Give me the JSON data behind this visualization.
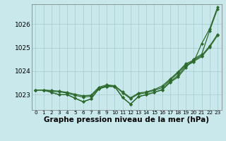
{
  "xlabel": "Graphe pression niveau de la mer (hPa)",
  "xlim": [
    -0.5,
    23.5
  ],
  "ylim": [
    1022.35,
    1026.85
  ],
  "yticks": [
    1023,
    1024,
    1025,
    1026
  ],
  "xticks": [
    0,
    1,
    2,
    3,
    4,
    5,
    6,
    7,
    8,
    9,
    10,
    11,
    12,
    13,
    14,
    15,
    16,
    17,
    18,
    19,
    20,
    21,
    22,
    23
  ],
  "background_color": "#c8e8ec",
  "grid_color": "#a8ccd2",
  "line_color": "#2d6a2d",
  "lines": [
    [
      1023.2,
      1023.2,
      1023.1,
      1023.0,
      1023.0,
      1022.85,
      1022.7,
      1022.82,
      1023.25,
      1023.35,
      1023.35,
      1022.88,
      1022.6,
      1022.92,
      1023.0,
      1023.1,
      1023.2,
      1023.52,
      1023.75,
      1024.15,
      1024.52,
      1024.72,
      1025.72,
      1026.65
    ],
    [
      1023.2,
      1023.2,
      1023.1,
      1023.0,
      1023.0,
      1022.85,
      1022.7,
      1022.82,
      1023.25,
      1023.35,
      1023.35,
      1022.88,
      1022.6,
      1022.92,
      1023.0,
      1023.1,
      1023.22,
      1023.55,
      1023.82,
      1024.22,
      1024.4,
      1025.18,
      1025.8,
      1026.72
    ],
    [
      1023.2,
      1023.2,
      1023.15,
      1023.12,
      1023.07,
      1022.97,
      1022.9,
      1022.93,
      1023.28,
      1023.38,
      1023.38,
      1023.08,
      1022.83,
      1023.03,
      1023.08,
      1023.18,
      1023.3,
      1023.62,
      1023.92,
      1024.27,
      1024.42,
      1024.62,
      1025.02,
      1025.52
    ],
    [
      1023.2,
      1023.2,
      1023.18,
      1023.15,
      1023.1,
      1023.02,
      1022.95,
      1022.98,
      1023.32,
      1023.42,
      1023.38,
      1023.12,
      1022.87,
      1023.07,
      1023.12,
      1023.22,
      1023.37,
      1023.67,
      1023.97,
      1024.32,
      1024.47,
      1024.67,
      1025.07,
      1025.57
    ]
  ],
  "linewidth": 0.9,
  "markersize": 2.2,
  "xlabel_fontsize": 7.5,
  "xlabel_fontweight": "bold",
  "ytick_fontsize": 6.5,
  "xtick_fontsize": 5.2
}
